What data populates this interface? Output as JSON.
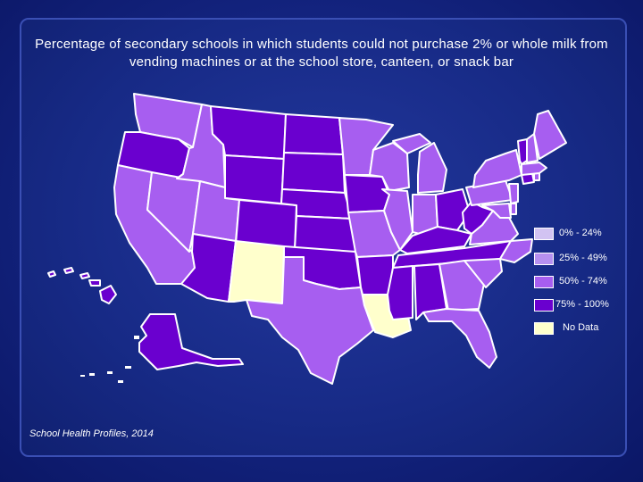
{
  "title": "Percentage of secondary schools in which students could not purchase 2% or whole milk from vending machines or at the school store, canteen, or snack bar",
  "source": "School Health Profiles, 2014",
  "colors": {
    "c0": "#d2c3f2",
    "c1": "#b690f0",
    "c2": "#a75ef0",
    "c3": "#6a00cf",
    "nodata": "#ffffcc"
  },
  "legend": [
    {
      "label": "0% - 24%",
      "color_key": "c0"
    },
    {
      "label": "25% - 49%",
      "color_key": "c1"
    },
    {
      "label": "50% - 74%",
      "color_key": "c2"
    },
    {
      "label": "75% - 100%",
      "color_key": "c3"
    },
    {
      "label": "No Data",
      "color_key": "nodata"
    }
  ],
  "states": {
    "WA": "c2",
    "OR": "c3",
    "CA": "c2",
    "NV": "c2",
    "ID": "c2",
    "MT": "c3",
    "WY": "c3",
    "UT": "c2",
    "AZ": "c3",
    "NM": "nodata",
    "CO": "c3",
    "ND": "c3",
    "SD": "c3",
    "NE": "c3",
    "KS": "c3",
    "OK": "c3",
    "TX": "c2",
    "MN": "c2",
    "IA": "c3",
    "MO": "c2",
    "AR": "c3",
    "LA": "nodata",
    "WI": "c2",
    "IL": "c2",
    "MI": "c2",
    "IN": "c2",
    "OH": "c3",
    "KY": "c3",
    "TN": "c3",
    "MS": "c3",
    "AL": "c3",
    "GA": "c2",
    "FL": "c2",
    "SC": "c2",
    "NC": "c2",
    "VA": "c2",
    "WV": "c3",
    "PA": "c2",
    "NY": "c2",
    "ME": "c2",
    "VT": "c3",
    "NH": "c2",
    "MA": "c2",
    "CT": "c3",
    "RI": "c2",
    "NJ": "c2",
    "DE": "c2",
    "MD": "c2",
    "AK": "c3",
    "HI": "c3"
  }
}
